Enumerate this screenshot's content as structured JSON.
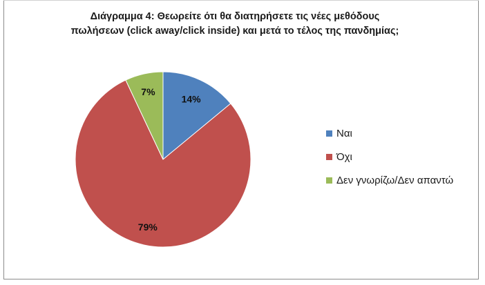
{
  "chart_data": {
    "type": "pie",
    "title_lines": [
      "Διάγραμμα 4: Θεωρείτε ότι θα διατηρήσετε τις νέες μεθόδους",
      "πωλήσεων (click away/click inside) και μετά το τέλος της πανδημίας;"
    ],
    "categories": [
      "Ναι",
      "Όχι",
      "Δεν γνωρίζω/Δεν απαντώ"
    ],
    "values": [
      14,
      79,
      7
    ],
    "labels": [
      "14%",
      "79%",
      "7%"
    ],
    "colors": [
      "#4f81bd",
      "#c0504d",
      "#9bbb59"
    ],
    "legend_position": "right",
    "start": "top, clockwise"
  }
}
